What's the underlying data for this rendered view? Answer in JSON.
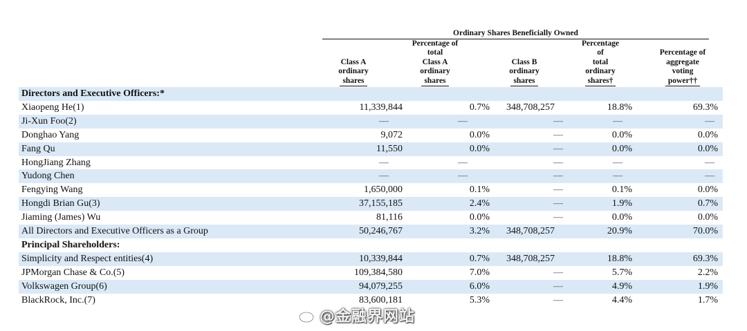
{
  "table": {
    "group_header": "Ordinary Shares Beneficially Owned",
    "columns": [
      {
        "lines": [
          "Class A",
          "ordinary",
          "shares"
        ]
      },
      {
        "lines": [
          "Percentage of",
          "total",
          "Class A",
          "ordinary",
          "shares"
        ]
      },
      {
        "lines": [
          "Class B",
          "ordinary",
          "shares"
        ]
      },
      {
        "lines": [
          "Percentage",
          "of",
          "total",
          "ordinary",
          "shares†"
        ]
      },
      {
        "lines": [
          "Percentage of",
          "aggregate",
          "voting",
          "power††"
        ]
      }
    ],
    "rows": [
      {
        "type": "section",
        "name": "Directors and Executive Officers:*"
      },
      {
        "type": "data",
        "name": "Xiaopeng He(1)",
        "class_a": "11,339,844",
        "pct_class_a": "0.7%",
        "class_b": "348,708,257",
        "pct_total": "18.8%",
        "pct_voting": "69.3%"
      },
      {
        "type": "data",
        "name": "Ji-Xun Foo(2)",
        "class_a": "—",
        "pct_class_a": "—",
        "class_b": "—",
        "pct_total": "—",
        "pct_voting": "—"
      },
      {
        "type": "data",
        "name": "Donghao Yang",
        "class_a": "9,072",
        "pct_class_a": "0.0%",
        "class_b": "—",
        "pct_total": "0.0%",
        "pct_voting": "0.0%"
      },
      {
        "type": "data",
        "name": "Fang Qu",
        "class_a": "11,550",
        "pct_class_a": "0.0%",
        "class_b": "—",
        "pct_total": "0.0%",
        "pct_voting": "0.0%"
      },
      {
        "type": "data",
        "name": "HongJiang Zhang",
        "class_a": "—",
        "pct_class_a": "—",
        "class_b": "—",
        "pct_total": "—",
        "pct_voting": "—"
      },
      {
        "type": "data",
        "name": "Yudong Chen",
        "class_a": "—",
        "pct_class_a": "—",
        "class_b": "—",
        "pct_total": "—",
        "pct_voting": "—"
      },
      {
        "type": "data",
        "name": "Fengying Wang",
        "class_a": "1,650,000",
        "pct_class_a": "0.1%",
        "class_b": "—",
        "pct_total": "0.1%",
        "pct_voting": "0.0%"
      },
      {
        "type": "data",
        "name": "Hongdi Brian Gu(3)",
        "class_a": "37,155,185",
        "pct_class_a": "2.4%",
        "class_b": "—",
        "pct_total": "1.9%",
        "pct_voting": "0.7%"
      },
      {
        "type": "data",
        "name": "Jiaming (James) Wu",
        "class_a": "81,116",
        "pct_class_a": "0.0%",
        "class_b": "—",
        "pct_total": "0.0%",
        "pct_voting": "0.0%"
      },
      {
        "type": "data",
        "name": "All Directors and Executive Officers as a Group",
        "class_a": "50,246,767",
        "pct_class_a": "3.2%",
        "class_b": "348,708,257",
        "pct_total": "20.9%",
        "pct_voting": "70.0%"
      },
      {
        "type": "section",
        "name": "Principal Shareholders:"
      },
      {
        "type": "data",
        "name": "Simplicity and Respect entities(4)",
        "class_a": "10,339,844",
        "pct_class_a": "0.7%",
        "class_b": "348,708,257",
        "pct_total": "18.8%",
        "pct_voting": "69.3%"
      },
      {
        "type": "data",
        "name": "JPMorgan Chase & Co.(5)",
        "class_a": "109,384,580",
        "pct_class_a": "7.0%",
        "class_b": "—",
        "pct_total": "5.7%",
        "pct_voting": "2.2%"
      },
      {
        "type": "data",
        "name": "Volkswagen Group(6)",
        "class_a": "94,079,255",
        "pct_class_a": "6.0%",
        "class_b": "—",
        "pct_total": "4.9%",
        "pct_voting": "1.9%"
      },
      {
        "type": "data",
        "name": "BlackRock, Inc.(7)",
        "class_a": "83,600,181",
        "pct_class_a": "5.3%",
        "class_b": "—",
        "pct_total": "4.4%",
        "pct_voting": "1.7%"
      }
    ]
  },
  "watermark": {
    "icon": "weibo-icon",
    "text": "@金融界网站"
  }
}
